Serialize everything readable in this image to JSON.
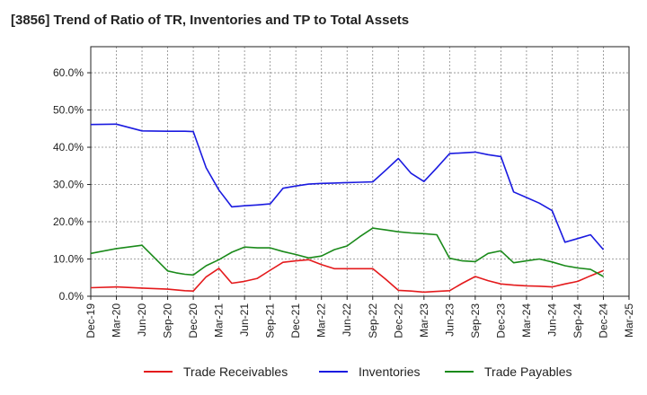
{
  "chart_data": {
    "type": "line",
    "title": "[3856]  Trend of Ratio of TR, Inventories and TP to Total Assets",
    "xlabel": "",
    "ylabel": "",
    "ylim": [
      0,
      0.67
    ],
    "y_ticks": [
      0,
      0.1,
      0.2,
      0.3,
      0.4,
      0.5,
      0.6
    ],
    "y_tick_labels": [
      "0.0%",
      "10.0%",
      "20.0%",
      "30.0%",
      "40.0%",
      "50.0%",
      "60.0%"
    ],
    "x_tick_labels": [
      "Dec-19",
      "Mar-20",
      "Jun-20",
      "Sep-20",
      "Dec-20",
      "Mar-21",
      "Jun-21",
      "Sep-21",
      "Dec-21",
      "Mar-22",
      "Jun-22",
      "Sep-22",
      "Dec-22",
      "Mar-23",
      "Jun-23",
      "Sep-23",
      "Dec-23",
      "Mar-24",
      "Jun-24",
      "Sep-24",
      "Dec-24",
      "Mar-25"
    ],
    "grid": true,
    "legend_position": "bottom",
    "x": [
      0,
      1,
      2,
      3,
      3.33,
      3.67,
      4,
      4.5,
      5,
      5.5,
      6,
      6.5,
      7,
      7.5,
      8,
      8.5,
      9,
      9.5,
      10,
      10.5,
      11,
      11.5,
      12,
      12.5,
      13,
      13.5,
      14,
      14.5,
      15,
      15.5,
      16,
      16.5,
      17,
      17.5,
      18,
      18.5,
      19,
      19.5,
      20
    ],
    "series": [
      {
        "name": "Trade Receivables",
        "color": "#e41a1c",
        "values": [
          0.023,
          0.025,
          0.022,
          0.019,
          0.017,
          0.015,
          0.014,
          0.052,
          0.075,
          0.035,
          0.04,
          0.048,
          0.07,
          0.091,
          0.095,
          0.098,
          0.085,
          0.074,
          0.074,
          0.074,
          0.074,
          0.046,
          0.016,
          0.014,
          0.011,
          0.013,
          0.015,
          0.035,
          0.053,
          0.042,
          0.033,
          0.03,
          0.028,
          0.027,
          0.025,
          0.033,
          0.04,
          0.055,
          0.069
        ]
      },
      {
        "name": "Inventories",
        "color": "#1a1ae0",
        "values": [
          0.461,
          0.462,
          0.444,
          0.443,
          0.443,
          0.443,
          0.442,
          0.345,
          0.285,
          0.24,
          0.243,
          0.245,
          0.248,
          0.29,
          0.296,
          0.301,
          0.303,
          0.304,
          0.305,
          0.306,
          0.307,
          0.338,
          0.37,
          0.33,
          0.308,
          0.345,
          0.383,
          0.385,
          0.387,
          0.38,
          0.375,
          0.28,
          0.265,
          0.25,
          0.23,
          0.145,
          0.155,
          0.165,
          0.125
        ]
      },
      {
        "name": "Trade Payables",
        "color": "#1a8a1a",
        "values": [
          0.115,
          0.128,
          0.137,
          0.068,
          0.063,
          0.059,
          0.057,
          0.082,
          0.098,
          0.118,
          0.132,
          0.13,
          0.13,
          0.12,
          0.112,
          0.103,
          0.108,
          0.125,
          0.135,
          0.16,
          0.183,
          0.178,
          0.173,
          0.17,
          0.168,
          0.165,
          0.102,
          0.095,
          0.093,
          0.115,
          0.122,
          0.09,
          0.095,
          0.1,
          0.092,
          0.082,
          0.076,
          0.072,
          0.053
        ]
      }
    ]
  }
}
